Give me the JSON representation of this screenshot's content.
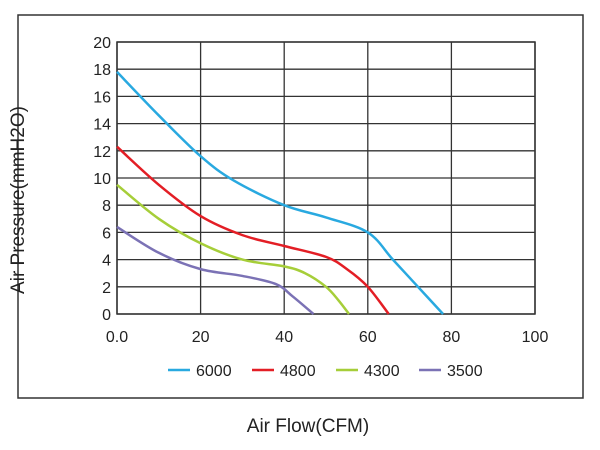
{
  "chart_data": {
    "type": "line",
    "title": "",
    "xlabel": "Air Flow(CFM)",
    "ylabel": "Air Pressure(mmH2O)",
    "xlim": [
      0,
      100
    ],
    "ylim": [
      0,
      20
    ],
    "xticks": [
      "0.0",
      "20",
      "40",
      "60",
      "80",
      "100"
    ],
    "xtick_values": [
      0,
      20,
      40,
      60,
      80,
      100
    ],
    "yticks": [
      "0",
      "2",
      "4",
      "6",
      "8",
      "10",
      "12",
      "14",
      "16",
      "18",
      "20"
    ],
    "ytick_values": [
      0,
      2,
      4,
      6,
      8,
      10,
      12,
      14,
      16,
      18,
      20
    ],
    "grid": true,
    "legend_position": "bottom",
    "series": [
      {
        "name": "6000",
        "color": "#29a9e0",
        "x": [
          0,
          10,
          20,
          28,
          40,
          50,
          60,
          66,
          72,
          78
        ],
        "y": [
          17.8,
          14.6,
          11.6,
          9.8,
          8,
          7.1,
          6,
          4,
          2,
          0
        ]
      },
      {
        "name": "4800",
        "color": "#e31e25",
        "x": [
          0,
          10,
          20,
          30,
          40,
          50,
          55,
          60,
          65
        ],
        "y": [
          12.3,
          9.5,
          7.2,
          5.8,
          5,
          4.2,
          3.3,
          2,
          0
        ]
      },
      {
        "name": "4300",
        "color": "#a6ce39",
        "x": [
          0,
          10,
          20,
          30,
          40,
          45,
          50,
          53,
          55.5
        ],
        "y": [
          9.5,
          7,
          5.2,
          4,
          3.5,
          3,
          2,
          1,
          0
        ]
      },
      {
        "name": "3500",
        "color": "#7b72b5",
        "x": [
          0,
          10,
          20,
          30,
          38,
          42,
          47
        ],
        "y": [
          6.4,
          4.5,
          3.3,
          2.8,
          2.2,
          1.3,
          0
        ]
      }
    ]
  }
}
